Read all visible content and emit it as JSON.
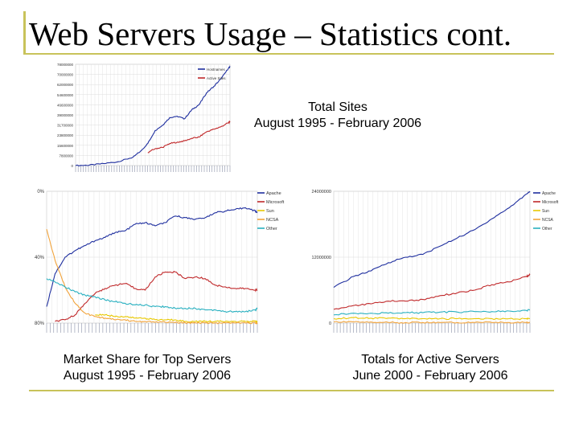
{
  "slide": {
    "title": "Web Servers Usage – Statistics cont."
  },
  "colors": {
    "accent": "#c8c35a",
    "apache": "#1f2f9f",
    "microsoft": "#c0282a",
    "sun": "#e8c800",
    "ncsa": "#f2a33a",
    "other": "#29b0c0"
  },
  "captions": {
    "total_sites": {
      "line1": "Total Sites",
      "line2": "August 1995 - February 2006"
    },
    "market_share": {
      "line1": "Market Share for Top Servers",
      "line2": "August 1995 - February 2006"
    },
    "active_servers": {
      "line1": "Totals for Active Servers",
      "line2": "June 2000 - February 2006"
    }
  },
  "chart_data": [
    {
      "type": "line",
      "title": "Total Sites",
      "subtitle": "August 1995 - February 2006",
      "x": [
        1995.58,
        1996.5,
        1997.5,
        1998.5,
        1999.5,
        2000.0,
        2000.5,
        2001.0,
        2001.5,
        2002.0,
        2002.5,
        2003.0,
        2003.5,
        2004.0,
        2004.5,
        2005.0,
        2005.5,
        2006.0,
        2006.1
      ],
      "series": [
        {
          "name": "Hostnames",
          "values": [
            0.02,
            0.3,
            1.5,
            3.0,
            6.5,
            11.0,
            17.0,
            27.0,
            31.0,
            37.0,
            38.0,
            36.0,
            43.0,
            47.0,
            56.0,
            61.0,
            67.0,
            75.0,
            76.0
          ]
        },
        {
          "name": "Active Sites",
          "values": [
            null,
            null,
            null,
            null,
            null,
            null,
            10.0,
            13.0,
            14.0,
            17.0,
            18.0,
            19.0,
            21.0,
            22.0,
            26.0,
            28.0,
            30.0,
            33.0,
            34.0
          ]
        }
      ],
      "ylabel": "",
      "y_ticks": [
        "78000000",
        "70000000",
        "62000000",
        "54600000",
        "46600000",
        "39000000",
        "31700000",
        "23800000",
        "15600000",
        "7800000",
        "0"
      ],
      "ylim": [
        0,
        78
      ],
      "grid": true,
      "legend": "top-right"
    },
    {
      "type": "line",
      "title": "Market Share for Top Servers",
      "subtitle": "August 1995 - February 2006",
      "x": [
        1995.58,
        1996.0,
        1996.5,
        1997.0,
        1997.5,
        1998.0,
        1998.5,
        1999.0,
        1999.5,
        2000.0,
        2000.5,
        2001.0,
        2001.5,
        2002.0,
        2002.5,
        2003.0,
        2003.5,
        2004.0,
        2004.5,
        2005.0,
        2005.5,
        2006.0,
        2006.1
      ],
      "series": [
        {
          "name": "Apache",
          "values": [
            10,
            30,
            40,
            44,
            47,
            50,
            52,
            55,
            56,
            60,
            61,
            59,
            61,
            65,
            64,
            63,
            64,
            67,
            68,
            69,
            70,
            68,
            67
          ]
        },
        {
          "name": "Microsoft",
          "values": [
            null,
            1,
            2,
            5,
            12,
            18,
            21,
            23,
            24,
            21,
            20,
            28,
            31,
            31,
            27,
            28,
            27,
            23,
            22,
            21,
            21,
            20,
            20
          ]
        },
        {
          "name": "Sun",
          "values": [
            null,
            null,
            null,
            null,
            null,
            5,
            5,
            4,
            4,
            3,
            3,
            2,
            2,
            2,
            1,
            1,
            1,
            1,
            1,
            1,
            1,
            1,
            1
          ]
        },
        {
          "name": "NCSA",
          "values": [
            57,
            38,
            22,
            12,
            6,
            4,
            3,
            2,
            2,
            1,
            1,
            0.5,
            0.5,
            0.3,
            0.2,
            0.2,
            0.1,
            0.1,
            0.1,
            0.1,
            0.1,
            0.1,
            0.1
          ]
        },
        {
          "name": "Other",
          "values": [
            27,
            25,
            22,
            19,
            17,
            16,
            14,
            13,
            12,
            11,
            11,
            10,
            10,
            9,
            9,
            9,
            8,
            8,
            7,
            7,
            7,
            8,
            9
          ]
        }
      ],
      "ylabel": "",
      "y_ticks": [
        "0%",
        "40%",
        "80%"
      ],
      "ylim": [
        0,
        80
      ],
      "grid": true,
      "legend": "top-right"
    },
    {
      "type": "line",
      "title": "Totals for Active Servers",
      "subtitle": "June 2000 - February 2006",
      "x": [
        2000.42,
        2001.0,
        2001.5,
        2002.0,
        2002.5,
        2003.0,
        2003.5,
        2004.0,
        2004.5,
        2005.0,
        2005.5,
        2006.0,
        2006.1
      ],
      "series": [
        {
          "name": "Apache",
          "values": [
            6.5,
            8.5,
            9.5,
            11,
            12,
            12.5,
            14,
            15.5,
            17,
            19,
            21,
            23.5,
            24
          ]
        },
        {
          "name": "Microsoft",
          "values": [
            2.5,
            3.2,
            3.5,
            4,
            4,
            4.3,
            5,
            5.5,
            6,
            7,
            7.5,
            8.5,
            8.8
          ]
        },
        {
          "name": "Sun",
          "values": [
            0.8,
            1,
            0.9,
            0.9,
            0.8,
            0.8,
            0.8,
            0.8,
            0.8,
            0.8,
            0.8,
            0.8,
            0.8
          ]
        },
        {
          "name": "NCSA",
          "values": [
            0.2,
            0.2,
            0.2,
            0.1,
            0.1,
            0.1,
            0.1,
            0.1,
            0.1,
            0.1,
            0.1,
            0.1,
            0.1
          ]
        },
        {
          "name": "Other",
          "values": [
            1.5,
            1.8,
            1.8,
            1.8,
            1.9,
            1.9,
            2,
            2,
            2.1,
            2.1,
            2.2,
            2.3,
            2.4
          ]
        }
      ],
      "ylabel": "",
      "y_ticks": [
        "24000000",
        "12000000",
        "0"
      ],
      "ylim": [
        0,
        24
      ],
      "grid": true,
      "legend": "top-right"
    }
  ]
}
